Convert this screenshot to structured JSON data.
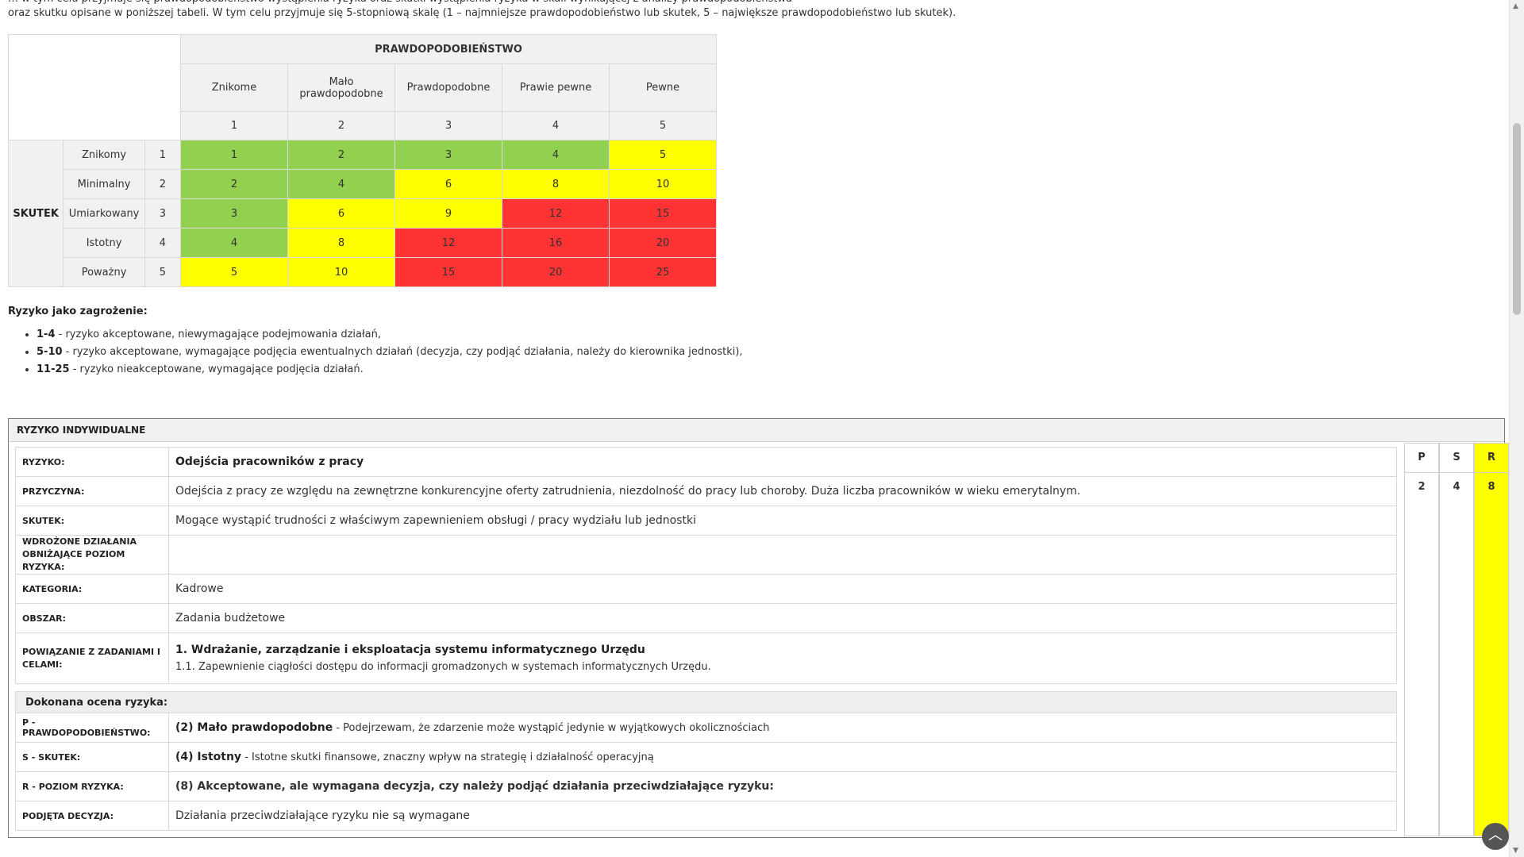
{
  "intro": {
    "line1": "… w tym celu przyjmuje się prawdopodobieństwo wystąpienia ryzyka oraz skutki wystąpienia ryzyka w skali wynikającej z analizy prawdopodobieństwa",
    "line2": "oraz skutku opisane w poniższej tabeli. W tym celu przyjmuje się 5-stopniową skalę (1 – najmniejsze prawdopodobieństwo lub skutek, 5 – największe prawdopodobieństwo lub skutek)."
  },
  "matrix": {
    "prob_title": "PRAWDOPODOBIEŃSTWO",
    "skutek_title": "SKUTEK",
    "prob_labels": [
      "Znikome",
      "Mało prawdopodobne",
      "Prawdopodobne",
      "Prawie pewne",
      "Pewne"
    ],
    "prob_nums": [
      "1",
      "2",
      "3",
      "4",
      "5"
    ],
    "rows": [
      {
        "label": "Znikomy",
        "num": "1",
        "cells": [
          "1",
          "2",
          "3",
          "4",
          "5"
        ],
        "colors": [
          "g",
          "g",
          "g",
          "g",
          "y"
        ]
      },
      {
        "label": "Minimalny",
        "num": "2",
        "cells": [
          "2",
          "4",
          "6",
          "8",
          "10"
        ],
        "colors": [
          "g",
          "g",
          "y",
          "y",
          "y"
        ]
      },
      {
        "label": "Umiarkowany",
        "num": "3",
        "cells": [
          "3",
          "6",
          "9",
          "12",
          "15"
        ],
        "colors": [
          "g",
          "y",
          "y",
          "r",
          "r"
        ]
      },
      {
        "label": "Istotny",
        "num": "4",
        "cells": [
          "4",
          "8",
          "12",
          "16",
          "20"
        ],
        "colors": [
          "g",
          "y",
          "r",
          "r",
          "r"
        ]
      },
      {
        "label": "Poważny",
        "num": "5",
        "cells": [
          "5",
          "10",
          "15",
          "20",
          "25"
        ],
        "colors": [
          "y",
          "y",
          "r",
          "r",
          "r"
        ]
      }
    ],
    "color_map": {
      "g": "#92d050",
      "y": "#ffff00",
      "r": "#ff3333"
    }
  },
  "legend": {
    "title": "Ryzyko jako zagrożenie:",
    "items": [
      {
        "range": "1-4",
        "text": " - ryzyko akceptowane, niewymagające podejmowania działań,"
      },
      {
        "range": "5-10",
        "text": " - ryzyko akceptowane, wymagające podjęcia ewentualnych działań (decyzja, czy podjąć działania, należy do kierownika jednostki),"
      },
      {
        "range": "11-25",
        "text": " - ryzyko nieakceptowane, wymagające podjęcia działań."
      }
    ]
  },
  "panel": {
    "title": "RYZYKO INDYWIDUALNE",
    "ryzyko_key": "RYZYKO:",
    "ryzyko_val": "Odejścia pracowników z pracy",
    "przyczyna_key": "PRZYCZYNA:",
    "przyczyna_val": "Odejścia z pracy ze względu na zewnętrzne konkurencyjne oferty zatrudnienia, niezdolność do pracy lub choroby. Duża liczba pracowników w wieku emerytalnym.",
    "skutek_key": "SKUTEK:",
    "skutek_val": "Mogące wystąpić trudności z właściwym zapewnieniem obsługi / pracy wydziału lub jednostki",
    "wdrozone_key": "WDROŻONE DZIAŁANIA OBNIŻAJĄCE POZIOM RYZYKA:",
    "wdrozone_val": "",
    "kategoria_key": "KATEGORIA:",
    "kategoria_val": "Kadrowe",
    "obszar_key": "OBSZAR:",
    "obszar_val": "Zadania budżetowe",
    "powiazanie_key": "POWIĄZANIE Z ZADANIAMI I CELAMI:",
    "powiazanie_val1": "1. Wdrażanie, zarządzanie i eksploatacja systemu informatycznego Urzędu",
    "powiazanie_val2": "1.1. Zapewnienie ciągłości dostępu do informacji gromadzonych w systemach informatycznych Urzędu.",
    "ocena_title": "Dokonana ocena ryzyka:",
    "p_key": "P - PRAWDOPODOBIEŃSTWO:",
    "p_bold": "(2) Mało prawdopodobne",
    "p_text": " - Podejrzewam, że zdarzenie może wystąpić jedynie w wyjątkowych okolicznościach",
    "s_key": "S - SKUTEK:",
    "s_bold": "(4) Istotny",
    "s_text": " - Istotne skutki finansowe, znaczny wpływ na strategię i działalność operacyjną",
    "r_key": "R - POZIOM RYZYKA:",
    "r_val": "(8) Akceptowane, ale wymagana decyzja, czy należy podjąć działania przeciwdziałające ryzyku:",
    "decyzja_key": "PODJĘTA DECYZJA:",
    "decyzja_val": "Działania przeciwdziałające ryzyku nie są wymagane",
    "psr": {
      "p_label": "P",
      "s_label": "S",
      "r_label": "R",
      "p_val": "2",
      "s_val": "4",
      "r_val": "8",
      "r_color": "#ffff00"
    }
  },
  "icons": {
    "scroll_top": "chevron-up-icon"
  }
}
